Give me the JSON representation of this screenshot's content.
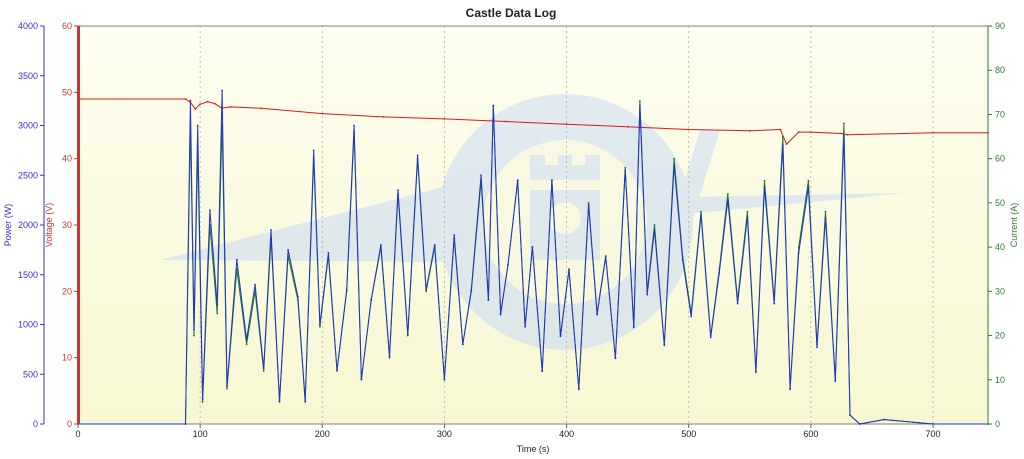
{
  "chart_data": {
    "type": "line",
    "title": "Castle Data Log",
    "xlabel": "Time (s)",
    "xlim": [
      0,
      745
    ],
    "x_ticks": [
      0,
      100,
      200,
      300,
      400,
      500,
      600,
      700
    ],
    "grid": true,
    "axes": [
      {
        "id": "power",
        "label": "Power (W)",
        "color": "#3333cc",
        "side": "left-outer",
        "range": [
          0,
          4000
        ],
        "ticks": [
          0,
          500,
          1000,
          1500,
          2000,
          2500,
          3000,
          3500,
          4000
        ]
      },
      {
        "id": "voltage",
        "label": "Voltage (V)",
        "color": "#cc3333",
        "side": "left-inner",
        "range": [
          0,
          60
        ],
        "ticks": [
          0,
          10,
          20,
          30,
          40,
          50,
          60
        ]
      },
      {
        "id": "current",
        "label": "Current (A)",
        "color": "#2e7d32",
        "side": "right",
        "range": [
          0,
          90
        ],
        "ticks": [
          0,
          10,
          20,
          30,
          40,
          50,
          60,
          70,
          80,
          90
        ]
      }
    ],
    "series": [
      {
        "name": "Voltage",
        "axis": "voltage",
        "color": "#e01818",
        "x": [
          0,
          88,
          92,
          96,
          100,
          106,
          112,
          118,
          125,
          150,
          200,
          250,
          300,
          350,
          400,
          450,
          500,
          550,
          575,
          580,
          590,
          600,
          625,
          630,
          700,
          745
        ],
        "y": [
          49,
          49,
          48.5,
          47.5,
          48.2,
          48.6,
          48.3,
          47.6,
          47.8,
          47.6,
          46.8,
          46.3,
          46.0,
          45.6,
          45.2,
          44.8,
          44.4,
          44.2,
          44.4,
          42.2,
          44.0,
          44.0,
          43.8,
          43.6,
          43.9,
          43.9
        ]
      },
      {
        "name": "Current",
        "axis": "current",
        "color": "#1a7a1a",
        "x": [
          0,
          88,
          92,
          95,
          98,
          102,
          108,
          114,
          118,
          122,
          130,
          138,
          145,
          152,
          158,
          165,
          172,
          180,
          186,
          193,
          198,
          205,
          212,
          220,
          226,
          232,
          240,
          248,
          255,
          262,
          270,
          278,
          285,
          292,
          300,
          308,
          315,
          322,
          330,
          336,
          340,
          346,
          352,
          360,
          366,
          372,
          380,
          388,
          395,
          402,
          410,
          418,
          425,
          432,
          440,
          448,
          455,
          460,
          466,
          472,
          480,
          488,
          495,
          502,
          510,
          518,
          525,
          532,
          540,
          548,
          555,
          562,
          570,
          577,
          583,
          590,
          598,
          605,
          612,
          620,
          627,
          632,
          640,
          660,
          700,
          745
        ],
        "y": [
          0,
          0,
          68,
          20,
          62,
          5,
          45,
          25,
          68,
          8,
          35,
          18,
          30,
          12,
          42,
          5,
          38,
          28,
          5,
          60,
          22,
          38,
          12,
          30,
          66,
          10,
          28,
          40,
          15,
          52,
          20,
          60,
          30,
          40,
          10,
          42,
          18,
          30,
          55,
          28,
          72,
          25,
          36,
          55,
          22,
          40,
          12,
          55,
          20,
          35,
          8,
          50,
          25,
          38,
          15,
          58,
          22,
          73,
          30,
          45,
          18,
          60,
          38,
          25,
          48,
          20,
          35,
          52,
          28,
          48,
          12,
          55,
          28,
          65,
          8,
          40,
          55,
          18,
          48,
          10,
          68,
          2,
          0,
          1,
          0,
          0
        ]
      },
      {
        "name": "Power",
        "axis": "power",
        "color": "#2233cc",
        "x": [
          0,
          88,
          92,
          95,
          98,
          102,
          108,
          114,
          118,
          122,
          130,
          138,
          145,
          152,
          158,
          165,
          172,
          180,
          186,
          193,
          198,
          205,
          212,
          220,
          226,
          232,
          240,
          248,
          255,
          262,
          270,
          278,
          285,
          292,
          300,
          308,
          315,
          322,
          330,
          336,
          340,
          346,
          352,
          360,
          366,
          372,
          380,
          388,
          395,
          402,
          410,
          418,
          425,
          432,
          440,
          448,
          455,
          460,
          466,
          472,
          480,
          488,
          495,
          502,
          510,
          518,
          525,
          532,
          540,
          548,
          555,
          562,
          570,
          577,
          583,
          590,
          598,
          605,
          612,
          620,
          627,
          632,
          640,
          660,
          700,
          745
        ],
        "y": [
          0,
          0,
          3250,
          950,
          3000,
          250,
          2150,
          1200,
          3350,
          380,
          1650,
          850,
          1400,
          560,
          1950,
          230,
          1750,
          1280,
          230,
          2750,
          1000,
          1720,
          540,
          1350,
          3000,
          450,
          1250,
          1800,
          680,
          2350,
          900,
          2700,
          1350,
          1800,
          450,
          1900,
          800,
          1350,
          2500,
          1250,
          3200,
          1100,
          1600,
          2450,
          980,
          1780,
          530,
          2450,
          880,
          1550,
          350,
          2200,
          1100,
          1680,
          660,
          2550,
          970,
          3200,
          1300,
          1950,
          790,
          2600,
          1650,
          1080,
          2100,
          870,
          1520,
          2250,
          1210,
          2080,
          520,
          2380,
          1210,
          2800,
          350,
          1720,
          2380,
          770,
          2070,
          430,
          2900,
          90,
          0,
          45,
          0,
          0
        ]
      }
    ]
  }
}
